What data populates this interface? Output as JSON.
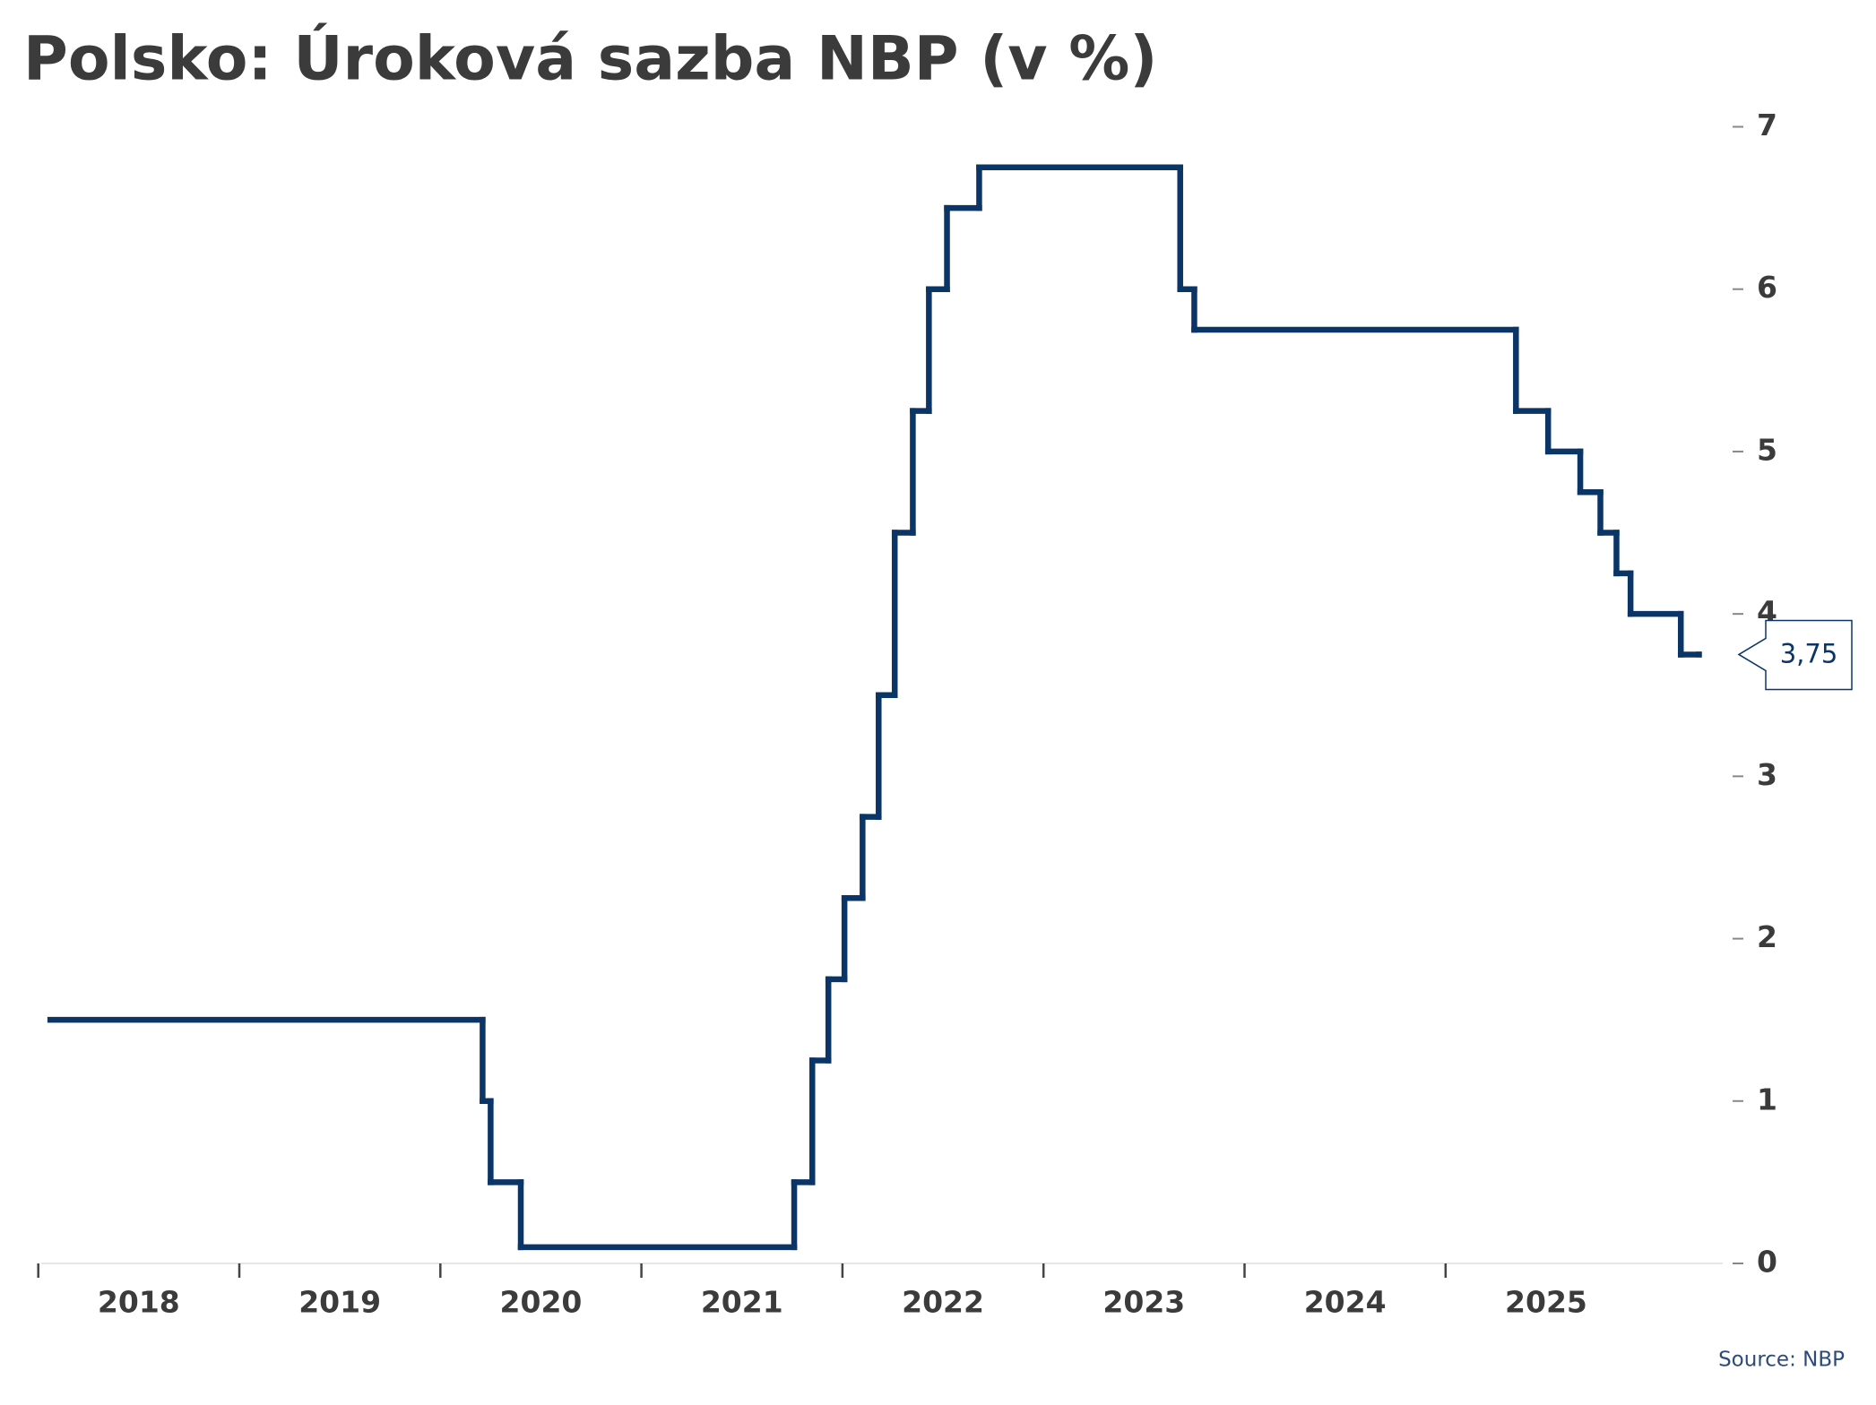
{
  "chart_data": {
    "type": "line",
    "title": "Polsko: Úroková sazba NBP (v %)",
    "source": "Source: NBP",
    "x": [
      2018.06,
      2020.21,
      2020.25,
      2020.4,
      2021.76,
      2021.85,
      2021.93,
      2022.01,
      2022.1,
      2022.18,
      2022.26,
      2022.35,
      2022.43,
      2022.52,
      2022.68,
      2023.68,
      2023.75,
      2025.35,
      2025.51,
      2025.67,
      2025.77,
      2025.85,
      2025.92,
      2026.17,
      2026.26
    ],
    "series": [
      {
        "name": "NBP",
        "color": "#0a3566",
        "values": [
          1.5,
          1.0,
          0.5,
          0.1,
          0.5,
          1.25,
          1.75,
          2.25,
          2.75,
          3.5,
          4.5,
          5.25,
          6.0,
          6.5,
          6.75,
          6.0,
          5.75,
          5.25,
          5.0,
          4.75,
          4.5,
          4.25,
          4.0,
          3.75,
          3.75
        ],
        "value_labels": [
          null,
          null,
          null,
          null,
          null,
          null,
          null,
          null,
          null,
          null,
          null,
          null,
          null,
          null,
          null,
          null,
          null,
          null,
          null,
          null,
          null,
          null,
          null,
          null,
          "3,75"
        ]
      }
    ],
    "xlim": [
      2018,
      2026.4
    ],
    "xticks": [
      2018,
      2019,
      2020,
      2021,
      2022,
      2023,
      2024,
      2025
    ],
    "ylim": [
      0,
      7
    ],
    "yticks": [
      0,
      1,
      2,
      3,
      4,
      5,
      6,
      7
    ],
    "step": true
  }
}
